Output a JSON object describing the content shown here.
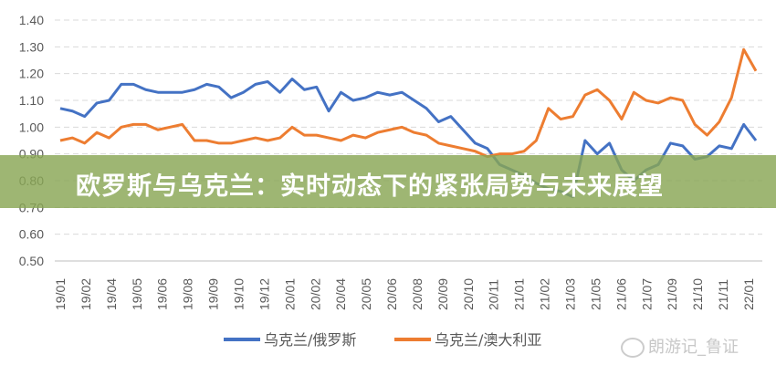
{
  "banner": {
    "title": "欧罗斯与乌克兰：实时动态下的紧张局势与未来展望"
  },
  "watermark": {
    "text": "朗游记_鲁证",
    "icon": "weibo-icon"
  },
  "chart_data": {
    "type": "line",
    "title": "",
    "xlabel": "",
    "ylabel": "",
    "ylim": [
      0.5,
      1.4
    ],
    "yticks": [
      "0.50",
      "0.60",
      "0.70",
      "0.80",
      "0.90",
      "1.00",
      "1.10",
      "1.20",
      "1.30",
      "1.40"
    ],
    "xtick_labels": [
      "19/01",
      "19/02",
      "19/04",
      "19/05",
      "19/06",
      "19/08",
      "19/09",
      "19/10",
      "19/12",
      "20/01",
      "20/02",
      "20/04",
      "20/05",
      "20/06",
      "20/08",
      "20/09",
      "20/10",
      "20/11",
      "21/01",
      "21/02",
      "21/03",
      "21/05",
      "21/06",
      "21/07",
      "21/09",
      "21/10",
      "21/11",
      "22/01"
    ],
    "grid": "horizontal dashed",
    "legend_position": "bottom",
    "series": [
      {
        "name": "乌克兰/俄罗斯",
        "color": "#4472c4",
        "values": [
          1.07,
          1.06,
          1.04,
          1.09,
          1.1,
          1.16,
          1.16,
          1.14,
          1.13,
          1.13,
          1.13,
          1.14,
          1.16,
          1.15,
          1.11,
          1.13,
          1.16,
          1.17,
          1.13,
          1.18,
          1.14,
          1.15,
          1.06,
          1.13,
          1.1,
          1.11,
          1.13,
          1.12,
          1.13,
          1.1,
          1.07,
          1.02,
          1.04,
          0.99,
          0.94,
          0.92,
          0.86,
          0.84,
          0.82,
          0.79,
          0.77,
          0.76,
          0.74,
          0.95,
          0.9,
          0.94,
          0.84,
          0.8,
          0.84,
          0.86,
          0.94,
          0.93,
          0.88,
          0.89,
          0.93,
          0.92,
          1.01,
          0.95
        ]
      },
      {
        "name": "乌克兰/澳大利亚",
        "color": "#ed7d31",
        "values": [
          0.95,
          0.96,
          0.94,
          0.98,
          0.96,
          1.0,
          1.01,
          1.01,
          0.99,
          1.0,
          1.01,
          0.95,
          0.95,
          0.94,
          0.94,
          0.95,
          0.96,
          0.95,
          0.96,
          1.0,
          0.97,
          0.97,
          0.96,
          0.95,
          0.97,
          0.96,
          0.98,
          0.99,
          1.0,
          0.98,
          0.97,
          0.94,
          0.93,
          0.92,
          0.91,
          0.89,
          0.9,
          0.9,
          0.91,
          0.95,
          1.07,
          1.03,
          1.04,
          1.12,
          1.14,
          1.1,
          1.03,
          1.13,
          1.1,
          1.09,
          1.11,
          1.1,
          1.01,
          0.97,
          1.02,
          1.11,
          1.29,
          1.21
        ]
      }
    ]
  }
}
